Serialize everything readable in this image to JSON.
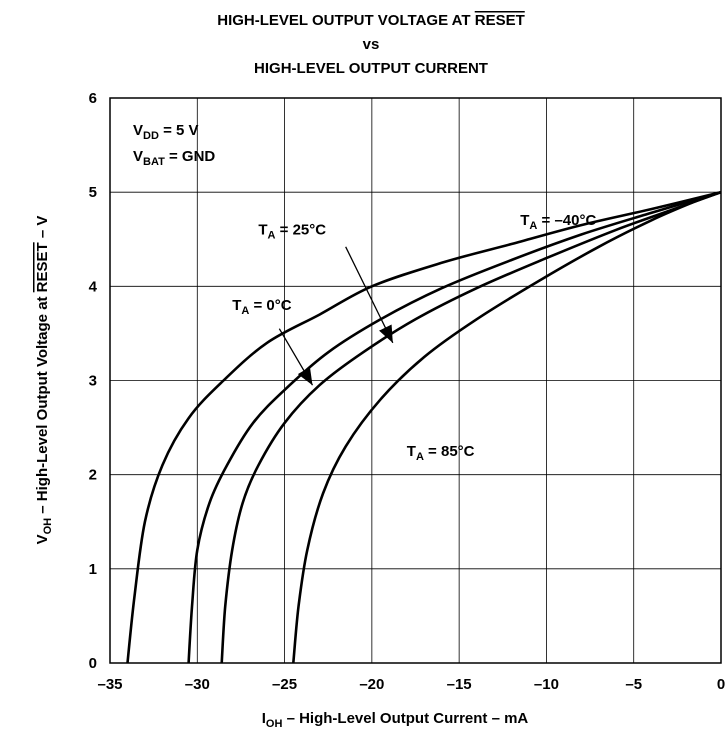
{
  "chart_data": {
    "type": "line",
    "title_lines": [
      "HIGH-LEVEL OUTPUT VOLTAGE AT RESET",
      "vs",
      "HIGH-LEVEL OUTPUT CURRENT"
    ],
    "title_overline_word": "RESET",
    "xlabel": {
      "main": "I",
      "sub": "OH",
      "rest": " – High-Level Output Current – mA"
    },
    "ylabel": {
      "main": "V",
      "sub": "OH",
      "mid": " – High-Level Output Voltage at ",
      "over": "RESET",
      "rest": " – V"
    },
    "xlim": [
      -35,
      0
    ],
    "ylim": [
      0,
      6
    ],
    "xticks": [
      -35,
      -30,
      -25,
      -20,
      -15,
      -10,
      -5,
      0
    ],
    "xtick_labels": [
      "–35",
      "–30",
      "–25",
      "–20",
      "–15",
      "–10",
      "–5",
      "0"
    ],
    "yticks": [
      0,
      1,
      2,
      3,
      4,
      5,
      6
    ],
    "ytick_labels": [
      "0",
      "1",
      "2",
      "3",
      "4",
      "5",
      "6"
    ],
    "grid": true,
    "conditions": [
      {
        "main": "V",
        "sub": "DD",
        "rest": " = 5 V"
      },
      {
        "main": "V",
        "sub": "BAT",
        "rest": " = GND"
      }
    ],
    "series": [
      {
        "name": "T_A = -40°C",
        "x": [
          -34.0,
          -33.6,
          -33.0,
          -32.0,
          -30.5,
          -28.5,
          -26.0,
          -23.0,
          -20.0,
          -16.0,
          -12.0,
          -8.0,
          -4.0,
          0.0
        ],
        "y": [
          0.0,
          0.7,
          1.5,
          2.1,
          2.6,
          3.0,
          3.4,
          3.7,
          4.0,
          4.25,
          4.45,
          4.65,
          4.82,
          5.0
        ]
      },
      {
        "name": "T_A = 0°C",
        "x": [
          -30.5,
          -30.3,
          -30.0,
          -29.3,
          -28.3,
          -26.8,
          -25.0,
          -22.5,
          -19.5,
          -16.0,
          -12.0,
          -8.0,
          -4.0,
          0.0
        ],
        "y": [
          0.0,
          0.6,
          1.2,
          1.7,
          2.1,
          2.55,
          2.9,
          3.3,
          3.65,
          3.98,
          4.28,
          4.55,
          4.78,
          5.0
        ]
      },
      {
        "name": "T_A = 25°C",
        "x": [
          -28.6,
          -28.4,
          -28.0,
          -27.4,
          -26.5,
          -25.0,
          -23.0,
          -20.5,
          -17.5,
          -14.0,
          -10.0,
          -6.0,
          -3.0,
          0.0
        ],
        "y": [
          0.0,
          0.6,
          1.2,
          1.7,
          2.1,
          2.55,
          2.95,
          3.3,
          3.65,
          3.98,
          4.3,
          4.6,
          4.8,
          5.0
        ]
      },
      {
        "name": "T_A = 85°C",
        "x": [
          -24.5,
          -24.2,
          -23.7,
          -22.8,
          -21.5,
          -19.5,
          -17.0,
          -14.0,
          -10.5,
          -7.0,
          -4.0,
          -1.5,
          0.0
        ],
        "y": [
          0.0,
          0.6,
          1.2,
          1.8,
          2.3,
          2.8,
          3.25,
          3.65,
          4.05,
          4.42,
          4.7,
          4.9,
          5.0
        ]
      }
    ],
    "annotations": [
      {
        "main": "T",
        "sub": "A",
        "rest": " = –40°C",
        "x": -11.5,
        "y": 4.65,
        "arrow": null
      },
      {
        "main": "T",
        "sub": "A",
        "rest": " = 25°C",
        "x": -26.5,
        "y": 4.55,
        "arrow": [
          -21.5,
          4.42,
          -18.8,
          3.4
        ]
      },
      {
        "main": "T",
        "sub": "A",
        "rest": " = 0°C",
        "x": -28.0,
        "y": 3.75,
        "arrow": [
          -25.3,
          3.55,
          -23.4,
          2.95
        ]
      },
      {
        "main": "T",
        "sub": "A",
        "rest": " = 85°C",
        "x": -18.0,
        "y": 2.2,
        "arrow": null
      }
    ]
  }
}
